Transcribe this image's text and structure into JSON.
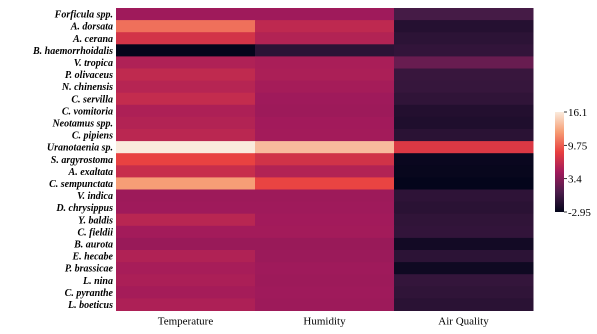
{
  "chart_data": {
    "type": "heatmap",
    "rows": [
      "Forficula spp.",
      "A. dorsata",
      "A. cerana",
      "B. haemorrhoidalis",
      "V. tropica",
      "P. olivaceus",
      "N. chinensis",
      "C. servilla",
      "C. vomitoria",
      "Neotamus spp.",
      "C. pipiens",
      "Uranotaenia sp.",
      "S. argyrostoma",
      "A. exaltata",
      "C. sempunctata",
      "V. indica",
      "D. chrysippus",
      "Y. baldis",
      "C. fieldii",
      "B. aurota",
      "E. hecabe",
      "P. brassicae",
      "L. nina",
      "C. pyranthe",
      "L. boeticus"
    ],
    "columns": [
      "Temperature",
      "Humidity",
      "Air Quality"
    ],
    "values": [
      [
        4.6,
        4.6,
        0.5
      ],
      [
        10.5,
        6.2,
        -1.2
      ],
      [
        7.3,
        5.6,
        -0.8
      ],
      [
        -2.9,
        -0.8,
        -0.5
      ],
      [
        5.4,
        5.1,
        2.1
      ],
      [
        6.3,
        5.2,
        -0.2
      ],
      [
        5.8,
        4.9,
        -0.3
      ],
      [
        6.5,
        4.6,
        -0.6
      ],
      [
        5.3,
        4.5,
        -1.3
      ],
      [
        5.6,
        4.7,
        -1.5
      ],
      [
        6.0,
        4.8,
        -0.9
      ],
      [
        16.1,
        13.8,
        7.8
      ],
      [
        8.6,
        7.2,
        -2.6
      ],
      [
        6.7,
        5.6,
        -2.7
      ],
      [
        12.4,
        8.7,
        -2.9
      ],
      [
        4.5,
        4.5,
        -0.7
      ],
      [
        4.6,
        4.6,
        -0.9
      ],
      [
        5.9,
        4.7,
        -0.6
      ],
      [
        4.8,
        4.8,
        -0.5
      ],
      [
        4.3,
        4.3,
        -2.1
      ],
      [
        5.5,
        4.4,
        -0.8
      ],
      [
        5.0,
        4.6,
        -2.3
      ],
      [
        5.2,
        4.5,
        -0.4
      ],
      [
        4.9,
        4.6,
        -0.6
      ],
      [
        5.3,
        4.5,
        -0.9
      ]
    ],
    "colorbar": {
      "min": -2.95,
      "max": 16.1,
      "ticks": [
        "16.1",
        "9.75",
        "3.4",
        "-2.95"
      ]
    },
    "colormap": [
      "#03051a",
      "#4c1d4b",
      "#a11a5b",
      "#e83f3f",
      "#f69c73",
      "#faebdd"
    ]
  }
}
